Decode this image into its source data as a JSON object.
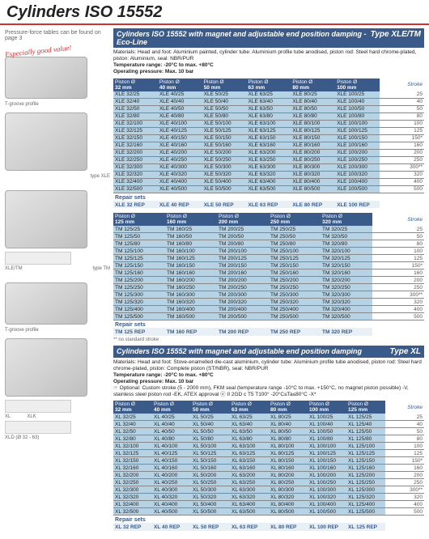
{
  "page": {
    "title": "Cylinders ISO 15552",
    "pressure_note": "Pressure-force tables can be found on page 3"
  },
  "sectionA": {
    "head_title": "Cylinders ISO 15552 with magnet and adjustable end position damping - Eco-Line",
    "head_type": "Type XLE/TM",
    "mat": "Materials: Head and foot: Aluminium painted, cylinder tube: Aluminium profile tube anodised, piston rod: Steel hard chrome-plated, piston: Aluminium, seal: NBR/PUR",
    "temp": "Temperature range: -20°C to max. +80°C",
    "press": "Operating pressure: Max. 10 bar",
    "callout": "Especially good value!",
    "groove": "T-groove profile",
    "typelabel1": "type XLE",
    "typelabel2": "type TM",
    "typelabel3": "XLE/TM",
    "headers": [
      "Piston Ø\n32 mm",
      "Piston Ø\n40 mm",
      "Piston Ø\n50 mm",
      "Piston Ø\n63 mm",
      "Piston Ø\n80 mm",
      "Piston Ø\n100 mm"
    ],
    "stroke_label": "Stroke",
    "strokes": [
      "25",
      "40",
      "50",
      "80",
      "100",
      "125",
      "150*",
      "160",
      "200",
      "250",
      "300**",
      "320",
      "400",
      "500"
    ],
    "rows": [
      [
        "XLE 32/25",
        "XLE 40/25",
        "XLE 50/25",
        "XLE 63/25",
        "XLE 80/25",
        "XLE 100/25"
      ],
      [
        "XLE 32/40",
        "XLE 40/40",
        "XLE 50/40",
        "XLE 63/40",
        "XLE 80/40",
        "XLE 100/40"
      ],
      [
        "XLE 32/50",
        "XLE 40/50",
        "XLE 50/50",
        "XLE 63/50",
        "XLE 80/50",
        "XLE 100/50"
      ],
      [
        "XLE 32/80",
        "XLE 40/80",
        "XLE 50/80",
        "XLE 63/80",
        "XLE 80/80",
        "XLE 100/80"
      ],
      [
        "XLE 32/100",
        "XLE 40/100",
        "XLE 50/100",
        "XLE 63/100",
        "XLE 80/100",
        "XLE 100/100"
      ],
      [
        "XLE 32/125",
        "XLE 40/125",
        "XLE 50/125",
        "XLE 63/125",
        "XLE 80/125",
        "XLE 100/125"
      ],
      [
        "XLE 32/150",
        "XLE 40/150",
        "XLE 50/150",
        "XLE 63/150",
        "XLE 80/150",
        "XLE 100/150"
      ],
      [
        "XLE 32/160",
        "XLE 40/160",
        "XLE 50/160",
        "XLE 63/160",
        "XLE 80/160",
        "XLE 100/160"
      ],
      [
        "XLE 32/200",
        "XLE 40/200",
        "XLE 50/200",
        "XLE 63/200",
        "XLE 80/200",
        "XLE 100/200"
      ],
      [
        "XLE 32/250",
        "XLE 40/250",
        "XLE 50/250",
        "XLE 63/250",
        "XLE 80/250",
        "XLE 100/250"
      ],
      [
        "XLE 32/300",
        "XLE 40/300",
        "XLE 50/300",
        "XLE 63/300",
        "XLE 80/300",
        "XLE 100/300"
      ],
      [
        "XLE 32/320",
        "XLE 40/320",
        "XLE 50/320",
        "XLE 63/320",
        "XLE 80/320",
        "XLE 100/320"
      ],
      [
        "XLE 32/400",
        "XLE 40/400",
        "XLE 50/400",
        "XLE 63/400",
        "XLE 80/400",
        "XLE 100/400"
      ],
      [
        "XLE 32/500",
        "XLE 40/500",
        "XLE 50/500",
        "XLE 63/500",
        "XLE 80/500",
        "XLE 100/500"
      ]
    ],
    "repair_label": "Repair sets",
    "repair": [
      "XLE 32 REP",
      "XLE 40 REP",
      "XLE 50 REP",
      "XLE 63 REP",
      "XLE 80 REP",
      "XLE 100 REP"
    ]
  },
  "sectionB": {
    "headers": [
      "Piston Ø\n125 mm",
      "Piston Ø\n160 mm",
      "Piston Ø\n200 mm",
      "Piston Ø\n250 mm",
      "Piston Ø\n320 mm"
    ],
    "stroke_label": "Stroke",
    "strokes": [
      "25",
      "50",
      "80",
      "100",
      "125",
      "150*",
      "160",
      "200",
      "250",
      "300**",
      "320",
      "400",
      "500"
    ],
    "rows": [
      [
        "TM 125/25",
        "TM 160/25",
        "TM 200/25",
        "TM 250/25",
        "TM 320/25"
      ],
      [
        "TM 125/50",
        "TM 160/50",
        "TM 200/50",
        "TM 250/50",
        "TM 320/50"
      ],
      [
        "TM 125/80",
        "TM 160/80",
        "TM 200/80",
        "TM 250/80",
        "TM 320/80"
      ],
      [
        "TM 125/100",
        "TM 160/100",
        "TM 200/100",
        "TM 250/100",
        "TM 320/100"
      ],
      [
        "TM 125/125",
        "TM 160/125",
        "TM 200/125",
        "TM 250/125",
        "TM 320/125"
      ],
      [
        "TM 125/150",
        "TM 160/150",
        "TM 200/150",
        "TM 250/150",
        "TM 320/150"
      ],
      [
        "TM 125/160",
        "TM 160/160",
        "TM 200/160",
        "TM 250/160",
        "TM 320/160"
      ],
      [
        "TM 125/200",
        "TM 160/200",
        "TM 200/200",
        "TM 250/200",
        "TM 320/200"
      ],
      [
        "TM 125/250",
        "TM 160/250",
        "TM 200/250",
        "TM 250/250",
        "TM 320/250"
      ],
      [
        "TM 125/300",
        "TM 160/300",
        "TM 200/300",
        "TM 250/300",
        "TM 320/300"
      ],
      [
        "TM 125/320",
        "TM 160/320",
        "TM 200/320",
        "TM 250/320",
        "TM 320/320"
      ],
      [
        "TM 125/400",
        "TM 160/400",
        "TM 200/400",
        "TM 250/400",
        "TM 320/400"
      ],
      [
        "TM 125/500",
        "TM 160/500",
        "TM 200/500",
        "TM 250/500",
        "TM 320/500"
      ]
    ],
    "repair_label": "Repair sets",
    "repair": [
      "TM 125 REP",
      "TM 160 REP",
      "TM 200 REP",
      "TM 250 REP",
      "TM 320 REP"
    ],
    "footnote": "** no standard stroke"
  },
  "sectionC": {
    "head_title": "Cylinders ISO 15552 with magnet and adjustable end position damping",
    "head_type": "Type XL",
    "mat": "Materials: Head and foot: Stove-enamelled die-cast aluminium, cylinder tube: Aluminium profile tube anodised, piston rod: Steel hard chrome-plated, piston: Complete piston (ST/NBR), seal: NBR/PUR",
    "temp": "Temperature range: -20°C to max. +80°C",
    "press": "Operating pressure: Max. 10 bar",
    "opt": "☞ Optional: Custom stroke (5 - 2000 mm), FKM seal (temperature range -10°C to max. +150°C, no magnet piston possible) -V, stainless steel piston rod -EK, ATEX approval ⓔ II 2GD c T5 T100° -20°C≤Ta≤80°C -X*",
    "groove": "T-groove profile",
    "lbl_xl": "XL",
    "lbl_xlk": "XLK",
    "lbl_xld": "XLD (Ø 32 - 63)",
    "headers": [
      "Piston Ø\n32 mm",
      "Piston Ø\n40 mm",
      "Piston Ø\n50 mm",
      "Piston Ø\n63 mm",
      "Piston Ø\n80 mm",
      "Piston Ø\n100 mm",
      "Piston Ø\n125 mm"
    ],
    "stroke_label": "Stroke",
    "strokes": [
      "25",
      "40",
      "50",
      "80",
      "100",
      "125",
      "150*",
      "160",
      "200",
      "250",
      "300**",
      "320",
      "400",
      "500"
    ],
    "rows": [
      [
        "XL 32/25",
        "XL 40/25",
        "XL 50/25",
        "XL 63/25",
        "XL 80/25",
        "XL 100/25",
        "XL 125/25"
      ],
      [
        "XL 32/40",
        "XL 40/40",
        "XL 50/40",
        "XL 63/40",
        "XL 80/40",
        "XL 100/40",
        "XL 125/40"
      ],
      [
        "XL 32/50",
        "XL 40/50",
        "XL 50/50",
        "XL 63/50",
        "XL 80/50",
        "XL 100/50",
        "XL 125/50"
      ],
      [
        "XL 32/80",
        "XL 40/80",
        "XL 50/80",
        "XL 63/80",
        "XL 80/80",
        "XL 100/80",
        "XL 125/80"
      ],
      [
        "XL 32/100",
        "XL 40/100",
        "XL 50/100",
        "XL 63/100",
        "XL 80/100",
        "XL 100/100",
        "XL 125/100"
      ],
      [
        "XL 32/125",
        "XL 40/125",
        "XL 50/125",
        "XL 63/125",
        "XL 80/125",
        "XL 100/125",
        "XL 125/125"
      ],
      [
        "XL 32/150",
        "XL 40/150",
        "XL 50/150",
        "XL 63/150",
        "XL 80/150",
        "XL 100/150",
        "XL 125/150"
      ],
      [
        "XL 32/160",
        "XL 40/160",
        "XL 50/160",
        "XL 63/160",
        "XL 80/160",
        "XL 100/160",
        "XL 125/160"
      ],
      [
        "XL 32/200",
        "XL 40/200",
        "XL 50/200",
        "XL 63/200",
        "XL 80/200",
        "XL 100/200",
        "XL 125/200"
      ],
      [
        "XL 32/250",
        "XL 40/250",
        "XL 50/250",
        "XL 63/250",
        "XL 80/250",
        "XL 100/250",
        "XL 125/250"
      ],
      [
        "XL 32/300",
        "XL 40/300",
        "XL 50/300",
        "XL 63/300",
        "XL 80/300",
        "XL 100/300",
        "XL 125/300"
      ],
      [
        "XL 32/320",
        "XL 40/320",
        "XL 50/320",
        "XL 63/320",
        "XL 80/320",
        "XL 100/320",
        "XL 125/320"
      ],
      [
        "XL 32/400",
        "XL 40/400",
        "XL 50/400",
        "XL 63/400",
        "XL 80/400",
        "XL 100/400",
        "XL 125/400"
      ],
      [
        "XL 32/500",
        "XL 40/500",
        "XL 50/500",
        "XL 63/500",
        "XL 80/500",
        "XL 100/500",
        "XL 125/500"
      ]
    ],
    "repair_label": "Repair sets",
    "repair": [
      "XL 32 REP",
      "XL 40 REP",
      "XL 50 REP",
      "XL 63 REP",
      "XL 80 REP",
      "XL 100 REP",
      "XL 125 REP"
    ]
  }
}
